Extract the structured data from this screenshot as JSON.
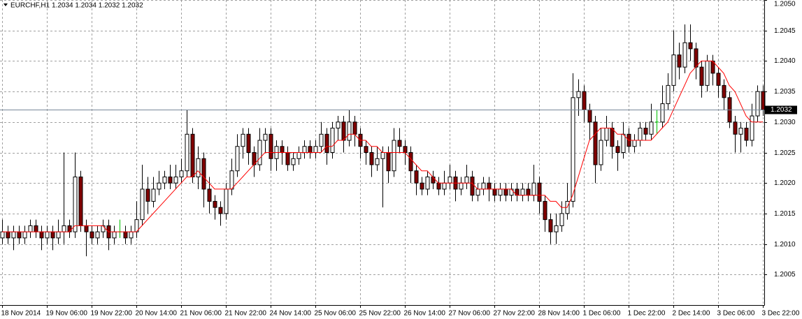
{
  "chart_data": {
    "type": "candlestick",
    "symbol": "EURCHF,H1",
    "quote": "1.2034 1.2034 1.2032 1.2032",
    "categories": [
      "18 Nov 2014",
      null,
      null,
      null,
      null,
      null,
      null,
      null,
      "19 Nov 06:00",
      null,
      null,
      null,
      null,
      null,
      null,
      null,
      "19 Nov 22:00",
      null,
      null,
      null,
      null,
      null,
      null,
      null,
      "20 Nov 14:00",
      null,
      null,
      null,
      null,
      null,
      null,
      null,
      "21 Nov 06:00",
      null,
      null,
      null,
      null,
      null,
      null,
      null,
      "21 Nov 22:00",
      null,
      null,
      null,
      null,
      null,
      null,
      null,
      "24 Nov 14:00",
      null,
      null,
      null,
      null,
      null,
      null,
      null,
      "25 Nov 06:00",
      null,
      null,
      null,
      null,
      null,
      null,
      null,
      "25 Nov 22:00",
      null,
      null,
      null,
      null,
      null,
      null,
      null,
      "26 Nov 14:00",
      null,
      null,
      null,
      null,
      null,
      null,
      null,
      "27 Nov 06:00",
      null,
      null,
      null,
      null,
      null,
      null,
      null,
      "27 Nov 22:00",
      null,
      null,
      null,
      null,
      null,
      null,
      null,
      "28 Nov 14:00",
      null,
      null,
      null,
      null,
      null,
      null,
      null,
      "1 Dec 06:00",
      null,
      null,
      null,
      null,
      null,
      null,
      null,
      "1 Dec 22:00",
      null,
      null,
      null,
      null,
      null,
      null,
      null,
      "2 Dec 14:00",
      null,
      null,
      null,
      null,
      null,
      null,
      null,
      "3 Dec 06:00",
      null,
      null,
      null,
      null,
      null,
      null,
      null,
      "3 Dec 22:00"
    ],
    "open": [
      1.2011,
      1.2012,
      1.2011,
      1.2012,
      1.2011,
      1.2012,
      1.2013,
      1.2012,
      1.2011,
      1.2012,
      1.2011,
      1.2012,
      1.2013,
      1.2012,
      1.2021,
      1.2013,
      1.2012,
      1.2011,
      1.2012,
      1.2013,
      1.2011,
      1.2012,
      1.2012,
      1.2011,
      1.2012,
      1.2014,
      1.2019,
      1.2017,
      1.2019,
      1.202,
      1.2021,
      1.202,
      1.2021,
      1.2022,
      1.2028,
      1.2021,
      1.2024,
      1.2019,
      1.2017,
      1.2016,
      1.2015,
      1.2019,
      1.2022,
      1.2026,
      1.2028,
      1.2025,
      1.2023,
      1.2027,
      1.2028,
      1.2024,
      1.2026,
      1.2025,
      1.2023,
      1.2024,
      1.2025,
      1.2026,
      1.2025,
      1.2026,
      1.2028,
      1.2025,
      1.2029,
      1.203,
      1.2027,
      1.203,
      1.2028,
      1.2026,
      1.2025,
      1.2023,
      1.2024,
      1.2025,
      1.2022,
      1.2027,
      1.2026,
      1.2025,
      1.2022,
      1.202,
      1.2019,
      1.2021,
      1.202,
      1.2019,
      1.202,
      1.2021,
      1.2019,
      1.202,
      1.2021,
      1.2018,
      1.2019,
      1.202,
      1.2019,
      1.2018,
      1.2019,
      1.2018,
      1.2019,
      1.2018,
      1.2019,
      1.2018,
      1.202,
      1.2017,
      1.2014,
      1.2012,
      1.2013,
      1.2015,
      1.2017,
      1.2034,
      1.2035,
      1.2032,
      1.203,
      1.2023,
      1.2027,
      1.2029,
      1.2026,
      1.2025,
      1.2028,
      1.2026,
      1.2027,
      1.2029,
      1.2028,
      1.203,
      1.203,
      1.2033,
      1.2036,
      1.2041,
      1.2039,
      1.2043,
      1.2042,
      1.2039,
      1.2036,
      1.204,
      1.2038,
      1.2036,
      1.2034,
      1.203,
      1.2028,
      1.2029,
      1.2027,
      1.2031,
      1.2035
    ],
    "high": [
      1.2014,
      1.2013,
      1.2013,
      1.2013,
      1.2013,
      1.2014,
      1.2014,
      1.2013,
      1.2013,
      1.2013,
      1.2014,
      1.2025,
      1.2014,
      1.2025,
      1.2022,
      1.2014,
      1.2013,
      1.2013,
      1.2014,
      1.2014,
      1.2013,
      1.2014,
      1.2013,
      1.2013,
      1.2017,
      1.2023,
      1.2021,
      1.2021,
      1.2022,
      1.2022,
      1.2023,
      1.2023,
      1.2024,
      1.2032,
      1.2029,
      1.2026,
      1.2025,
      1.2021,
      1.2018,
      1.2017,
      1.202,
      1.2024,
      1.2028,
      1.2029,
      1.2029,
      1.2026,
      1.2029,
      1.2029,
      1.2029,
      1.2027,
      1.2027,
      1.2026,
      1.2025,
      1.2026,
      1.2027,
      1.2027,
      1.2027,
      1.203,
      1.2029,
      1.203,
      1.2031,
      1.2031,
      1.2032,
      1.2031,
      1.2029,
      1.2027,
      1.2026,
      1.2026,
      1.2026,
      1.2026,
      1.2029,
      1.2029,
      1.2027,
      1.2026,
      1.2023,
      1.2021,
      1.2022,
      1.2022,
      1.2021,
      1.2022,
      1.2023,
      1.2022,
      1.2021,
      1.2023,
      1.2022,
      1.202,
      1.2021,
      1.2021,
      1.202,
      1.202,
      1.202,
      1.202,
      1.202,
      1.202,
      1.202,
      1.2023,
      1.2021,
      1.2018,
      1.2015,
      1.2015,
      1.2017,
      1.202,
      1.2038,
      1.2037,
      1.2036,
      1.2033,
      1.2031,
      1.2029,
      1.2031,
      1.203,
      1.2027,
      1.203,
      1.2029,
      1.2028,
      1.203,
      1.203,
      1.2033,
      1.2032,
      1.2036,
      1.2038,
      1.2045,
      1.2043,
      1.2046,
      1.2046,
      1.2043,
      1.204,
      1.2041,
      1.2041,
      1.2039,
      1.2037,
      1.2035,
      1.2031,
      1.203,
      1.203,
      1.2033,
      1.2036,
      1.2036
    ],
    "low": [
      1.201,
      1.201,
      1.2009,
      1.201,
      1.201,
      1.2011,
      1.2011,
      1.2009,
      1.201,
      1.2009,
      1.201,
      1.201,
      1.2011,
      1.2011,
      1.2012,
      1.2008,
      1.201,
      1.201,
      1.2011,
      1.2009,
      1.201,
      1.2011,
      1.201,
      1.201,
      1.2011,
      1.2013,
      1.2015,
      1.2016,
      1.2018,
      1.2019,
      1.2019,
      1.2019,
      1.202,
      1.2021,
      1.202,
      1.2019,
      1.2016,
      1.2015,
      1.2014,
      1.2013,
      1.2014,
      1.2018,
      1.2021,
      1.2024,
      1.2023,
      1.2021,
      1.2022,
      1.2025,
      1.2022,
      1.2022,
      1.2023,
      1.2022,
      1.2022,
      1.2023,
      1.2024,
      1.2024,
      1.2024,
      1.2025,
      1.2023,
      1.2024,
      1.2027,
      1.2025,
      1.2026,
      1.2026,
      1.2024,
      1.2023,
      1.2021,
      1.2022,
      1.2016,
      1.202,
      1.2021,
      1.2025,
      1.2023,
      1.202,
      1.2018,
      1.2018,
      1.2018,
      1.2019,
      1.2018,
      1.2018,
      1.2019,
      1.2017,
      1.2018,
      1.2019,
      1.2017,
      1.2017,
      1.2018,
      1.2017,
      1.2017,
      1.2017,
      1.2017,
      1.2017,
      1.2017,
      1.2017,
      1.2017,
      1.2017,
      1.2015,
      1.2012,
      1.201,
      1.201,
      1.2012,
      1.2014,
      1.2016,
      1.2031,
      1.203,
      1.2027,
      1.202,
      1.2022,
      1.2026,
      1.2024,
      1.2022,
      1.2024,
      1.2025,
      1.2025,
      1.2026,
      1.2027,
      1.2027,
      1.2028,
      1.2029,
      1.2032,
      1.2035,
      1.2037,
      1.2038,
      1.204,
      1.2037,
      1.2034,
      1.2035,
      1.2036,
      1.2034,
      1.2032,
      1.2029,
      1.2025,
      1.2025,
      1.2026,
      1.2026,
      1.203,
      1.2031
    ],
    "close": [
      1.2012,
      1.2011,
      1.2012,
      1.2011,
      1.2012,
      1.2013,
      1.2012,
      1.2011,
      1.2012,
      1.2011,
      1.2012,
      1.2013,
      1.2012,
      1.2021,
      1.2013,
      1.2012,
      1.2011,
      1.2012,
      1.2013,
      1.2011,
      1.2012,
      1.2012,
      1.2011,
      1.2012,
      1.2014,
      1.2019,
      1.2017,
      1.2019,
      1.202,
      1.2021,
      1.202,
      1.2021,
      1.2022,
      1.2028,
      1.2021,
      1.2024,
      1.2019,
      1.2017,
      1.2016,
      1.2015,
      1.2019,
      1.2022,
      1.2026,
      1.2028,
      1.2025,
      1.2023,
      1.2027,
      1.2028,
      1.2024,
      1.2026,
      1.2025,
      1.2023,
      1.2024,
      1.2025,
      1.2026,
      1.2025,
      1.2026,
      1.2028,
      1.2025,
      1.2029,
      1.203,
      1.2027,
      1.203,
      1.2028,
      1.2026,
      1.2025,
      1.2023,
      1.2024,
      1.2025,
      1.2022,
      1.2027,
      1.2026,
      1.2025,
      1.2022,
      1.202,
      1.2019,
      1.2021,
      1.202,
      1.2019,
      1.202,
      1.2021,
      1.2019,
      1.202,
      1.2021,
      1.2018,
      1.2019,
      1.202,
      1.2019,
      1.2018,
      1.2019,
      1.2018,
      1.2019,
      1.2018,
      1.2019,
      1.2018,
      1.202,
      1.2017,
      1.2014,
      1.2012,
      1.2013,
      1.2015,
      1.2017,
      1.2034,
      1.2035,
      1.2032,
      1.203,
      1.2023,
      1.2027,
      1.2029,
      1.2026,
      1.2025,
      1.2028,
      1.2026,
      1.2027,
      1.2029,
      1.2028,
      1.203,
      1.203,
      1.2033,
      1.2036,
      1.2041,
      1.2039,
      1.2043,
      1.2042,
      1.2039,
      1.2036,
      1.204,
      1.2038,
      1.2036,
      1.2034,
      1.203,
      1.2028,
      1.2029,
      1.2027,
      1.2031,
      1.2035,
      1.2032
    ],
    "ma": [
      1.2012,
      1.2012,
      1.2012,
      1.2012,
      1.2012,
      1.2012,
      1.2012,
      1.2012,
      1.2012,
      1.2012,
      1.2012,
      1.2012,
      1.2012,
      1.2013,
      1.2013,
      1.2013,
      1.2013,
      1.2013,
      1.2013,
      1.2012,
      1.2012,
      1.2012,
      1.2012,
      1.2012,
      1.2012,
      1.2013,
      1.2014,
      1.2015,
      1.2016,
      1.2017,
      1.2018,
      1.2019,
      1.202,
      1.2021,
      1.2021,
      1.2022,
      1.2021,
      1.202,
      1.2019,
      1.2019,
      1.2019,
      1.2019,
      1.202,
      1.2021,
      1.2022,
      1.2023,
      1.2024,
      1.2025,
      1.2025,
      1.2025,
      1.2025,
      1.2025,
      1.2025,
      1.2025,
      1.2025,
      1.2025,
      1.2025,
      1.2025,
      1.2026,
      1.2026,
      1.2027,
      1.2027,
      1.2028,
      1.2028,
      1.2027,
      1.2027,
      1.2026,
      1.2026,
      1.2025,
      1.2025,
      1.2025,
      1.2025,
      1.2025,
      1.2024,
      1.2023,
      1.2022,
      1.2022,
      1.2021,
      1.202,
      1.202,
      1.202,
      1.202,
      1.202,
      1.202,
      1.202,
      1.2019,
      1.2019,
      1.2019,
      1.2019,
      1.2019,
      1.2019,
      1.2019,
      1.2018,
      1.2018,
      1.2018,
      1.2018,
      1.2018,
      1.2018,
      1.2017,
      1.2017,
      1.2016,
      1.2016,
      1.2018,
      1.2021,
      1.2024,
      1.2027,
      1.2028,
      1.2029,
      1.2029,
      1.2029,
      1.2028,
      1.2028,
      1.2027,
      1.2027,
      1.2027,
      1.2027,
      1.2027,
      1.2028,
      1.2029,
      1.203,
      1.2032,
      1.2034,
      1.2036,
      1.2038,
      1.2039,
      1.204,
      1.204,
      1.204,
      1.2039,
      1.2038,
      1.2036,
      1.2035,
      1.2033,
      1.2031,
      1.203,
      1.203,
      1.203
    ],
    "bid": 1.2032,
    "ylim": [
      1.2,
      1.205
    ],
    "yticks": [
      1.2005,
      {
        "value": 1.201,
        "label": "1.2010"
      },
      1.2015,
      {
        "value": 1.202,
        "label": "1.2020"
      },
      1.2025,
      {
        "value": 1.203,
        "label": "1.2030"
      },
      1.2035,
      {
        "value": 1.204,
        "label": "1.2040"
      },
      1.2045,
      {
        "value": 1.205,
        "label": "1.2050"
      }
    ],
    "grid": true,
    "up_color": "#ffffff",
    "down_color": "#800000",
    "outline_color": "#000000",
    "doji_color": "#00c000",
    "ma_color": "#ff0000",
    "price_line_color": "#778899"
  }
}
